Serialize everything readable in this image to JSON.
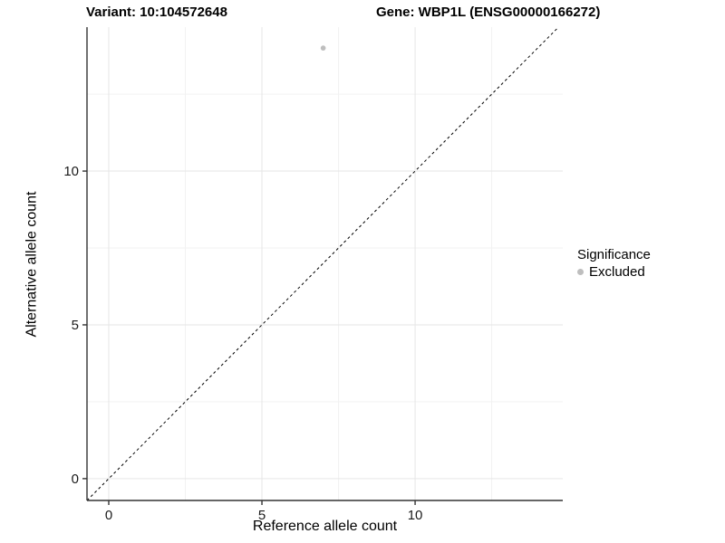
{
  "header": {
    "title_left": "Variant: 10:104572648",
    "title_right": "Gene: WBP1L (ENSG00000166272)"
  },
  "chart_data": {
    "type": "scatter",
    "title_left": "Variant: 10:104572648",
    "title_right": "Gene: WBP1L (ENSG00000166272)",
    "xlabel": "Reference allele count",
    "ylabel": "Alternative allele count",
    "xlim": [
      -0.71,
      14.82
    ],
    "ylim": [
      -0.71,
      14.68
    ],
    "xticks": [
      0,
      5,
      10
    ],
    "yticks": [
      0,
      5,
      10
    ],
    "x_minor": [
      2.5,
      7.5,
      12.5
    ],
    "y_minor": [
      2.5,
      7.5,
      12.5
    ],
    "grid": true,
    "points": [
      {
        "x": 7,
        "y": 14,
        "series": "Excluded"
      }
    ],
    "identity_line": {
      "type": "abline",
      "slope": 1,
      "intercept": 0,
      "style": "dashed"
    },
    "legend": {
      "position": "right",
      "title": "Significance",
      "items": [
        {
          "label": "Excluded",
          "color": "#bebebe"
        }
      ]
    },
    "colors": {
      "point": "#bebebe",
      "axis_line": "#333333",
      "tick_label": "#1a1a1a",
      "grid_major": "#e6e6e6",
      "grid_minor": "#f2f2f2",
      "diagonal": "#000000",
      "background": "#ffffff"
    }
  }
}
